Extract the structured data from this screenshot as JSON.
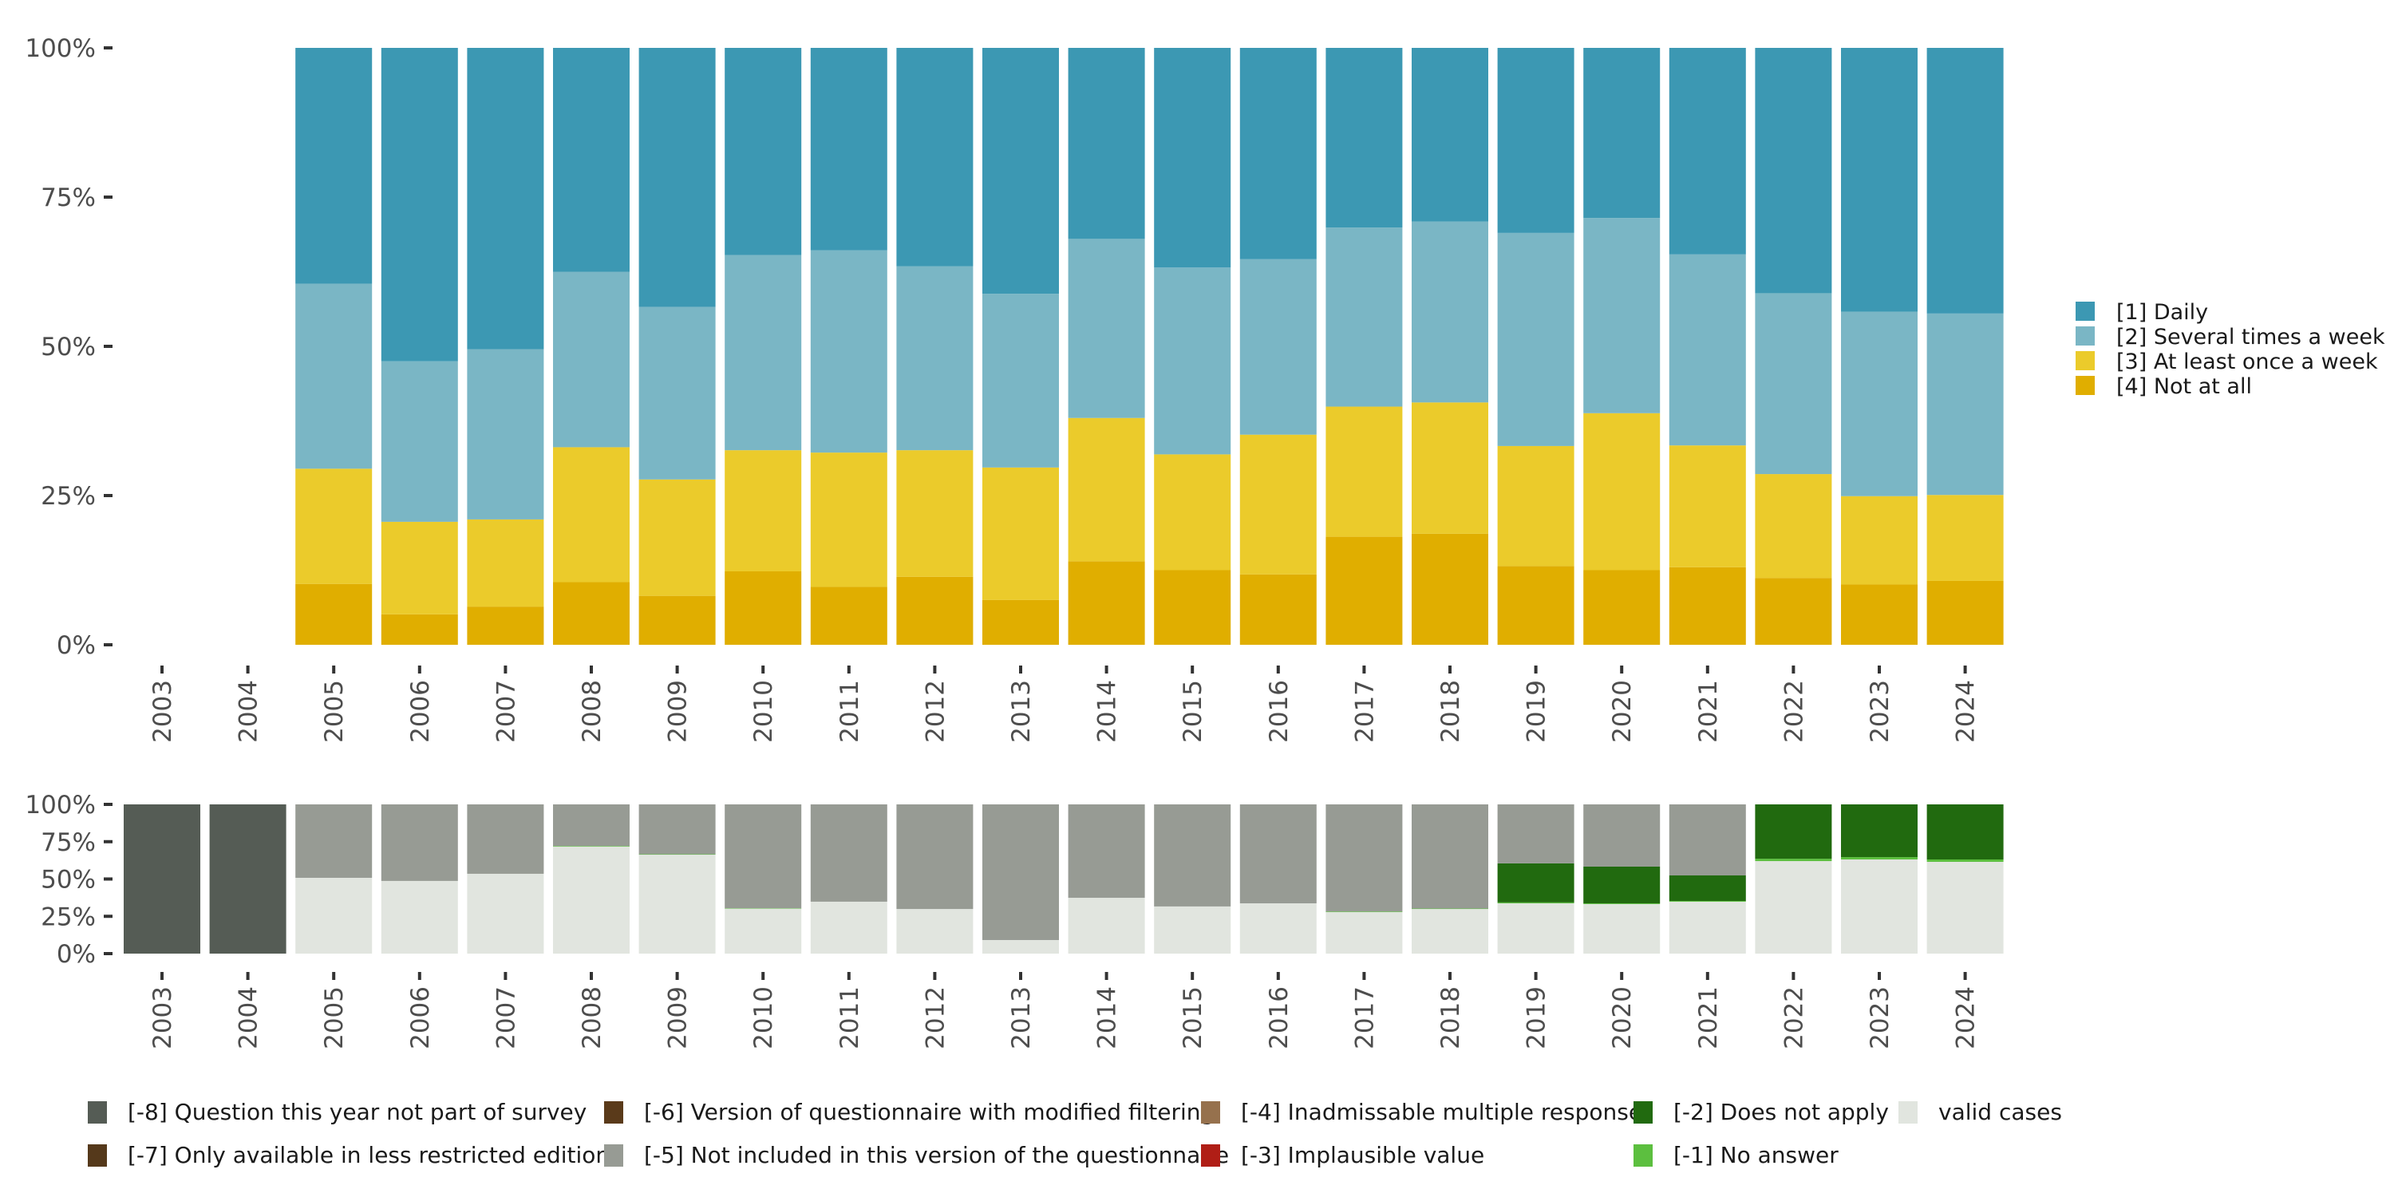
{
  "chart_data": [
    {
      "type": "bar",
      "stacked": true,
      "percent": true,
      "title": "",
      "xlabel": "",
      "ylabel": "",
      "ylim": [
        0,
        100
      ],
      "y_ticks": [
        "0%",
        "25%",
        "50%",
        "75%",
        "100%"
      ],
      "categories": [
        "2003",
        "2004",
        "2005",
        "2006",
        "2007",
        "2008",
        "2009",
        "2010",
        "2011",
        "2012",
        "2013",
        "2014",
        "2015",
        "2016",
        "2017",
        "2018",
        "2019",
        "2020",
        "2021",
        "2022",
        "2023",
        "2024"
      ],
      "legend_position": "right",
      "series": [
        {
          "name": "[4] Not at all",
          "color": "#e0ae00",
          "values": [
            null,
            null,
            10.2,
            5.1,
            6.4,
            10.5,
            8.2,
            12.3,
            9.7,
            11.4,
            7.5,
            14.0,
            12.5,
            11.8,
            18.1,
            18.6,
            13.2,
            12.5,
            13.0,
            11.2,
            10.1,
            10.7
          ]
        },
        {
          "name": "[3] At least once a week",
          "color": "#ebcb2b",
          "values": [
            null,
            null,
            19.3,
            15.5,
            14.6,
            22.6,
            19.5,
            20.3,
            22.5,
            21.2,
            22.2,
            24.0,
            19.4,
            23.4,
            21.8,
            22.0,
            20.1,
            26.3,
            20.4,
            17.4,
            14.8,
            14.4
          ]
        },
        {
          "name": "[2] Several times a week",
          "color": "#7ab6c5",
          "values": [
            null,
            null,
            31.0,
            26.9,
            28.5,
            29.4,
            28.9,
            32.7,
            33.9,
            30.8,
            29.1,
            30.0,
            31.3,
            29.4,
            30.0,
            30.3,
            35.7,
            32.7,
            32.0,
            30.3,
            30.9,
            30.4
          ]
        },
        {
          "name": "[1] Daily",
          "color": "#3c98b3",
          "values": [
            null,
            null,
            39.5,
            52.5,
            50.5,
            37.5,
            43.4,
            34.7,
            33.9,
            36.6,
            41.2,
            32.0,
            36.8,
            35.4,
            30.1,
            29.1,
            31.0,
            28.5,
            34.6,
            41.1,
            44.2,
            44.5
          ]
        }
      ]
    },
    {
      "type": "bar",
      "stacked": true,
      "percent": true,
      "title": "",
      "ylim": [
        0,
        100
      ],
      "y_ticks": [
        "0%",
        "25%",
        "50%",
        "75%",
        "100%"
      ],
      "categories": [
        "2003",
        "2004",
        "2005",
        "2006",
        "2007",
        "2008",
        "2009",
        "2010",
        "2011",
        "2012",
        "2013",
        "2014",
        "2015",
        "2016",
        "2017",
        "2018",
        "2019",
        "2020",
        "2021",
        "2022",
        "2023",
        "2024"
      ],
      "legend_position": "bottom",
      "series": [
        {
          "name": "valid cases",
          "color": "#e1e5df",
          "values": [
            0,
            0,
            50.8,
            48.7,
            53.5,
            71.7,
            66.3,
            30.1,
            34.8,
            29.9,
            9.1,
            37.4,
            31.6,
            33.7,
            27.8,
            29.9,
            33.7,
            33.2,
            34.8,
            62.0,
            63.1,
            61.5
          ]
        },
        {
          "name": "[-1] No answer",
          "color": "#5cbf3f",
          "values": [
            0,
            0,
            0,
            0,
            0,
            0.4,
            0.3,
            0.3,
            0,
            0,
            0,
            0,
            0,
            0,
            0.4,
            0.3,
            0.6,
            0.5,
            0.5,
            1.6,
            1.6,
            1.6
          ]
        },
        {
          "name": "[-2] Does not apply",
          "color": "#216a0f",
          "values": [
            0,
            0,
            0,
            0,
            0,
            0,
            0,
            0,
            0,
            0,
            0,
            0,
            0,
            0,
            0,
            0,
            26.2,
            24.6,
            17.1,
            36.4,
            35.3,
            36.9
          ]
        },
        {
          "name": "[-5] Not included in this version of the questionnaire",
          "color": "#979b94",
          "values": [
            0,
            0,
            49.2,
            51.3,
            46.5,
            27.9,
            33.4,
            69.6,
            65.2,
            70.1,
            90.9,
            62.6,
            68.4,
            66.3,
            71.8,
            69.8,
            39.5,
            41.7,
            47.6,
            0,
            0,
            0
          ]
        },
        {
          "name": "[-8] Question this year not part of survey",
          "color": "#555c55",
          "values": [
            100,
            100,
            0,
            0,
            0,
            0,
            0,
            0,
            0,
            0,
            0,
            0,
            0,
            0,
            0,
            0,
            0,
            0,
            0,
            0,
            0,
            0
          ]
        }
      ]
    }
  ],
  "top_legend": [
    {
      "label": "[1] Daily",
      "color": "#3c98b3"
    },
    {
      "label": "[2] Several times a week",
      "color": "#7ab6c5"
    },
    {
      "label": "[3] At least once a week",
      "color": "#ebcb2b"
    },
    {
      "label": "[4] Not at all",
      "color": "#e0ae00"
    }
  ],
  "bottom_legend": [
    {
      "label": "[-8] Question this year not part of survey",
      "color": "#555c55"
    },
    {
      "label": "[-7] Only available in less restricted edition",
      "color": "#55391b"
    },
    {
      "label": "[-6] Version of questionnaire with modified filtering",
      "color": "#5a3a1a"
    },
    {
      "label": "[-5] Not included in this version of the questionnaire",
      "color": "#979b94"
    },
    {
      "label": "[-4] Inadmissable multiple response",
      "color": "#96714d"
    },
    {
      "label": "[-3] Implausible value",
      "color": "#b01e16"
    },
    {
      "label": "[-2] Does not apply",
      "color": "#216a0f"
    },
    {
      "label": "[-1] No answer",
      "color": "#5cbf3f"
    },
    {
      "label": "valid cases",
      "color": "#e1e5df"
    }
  ]
}
